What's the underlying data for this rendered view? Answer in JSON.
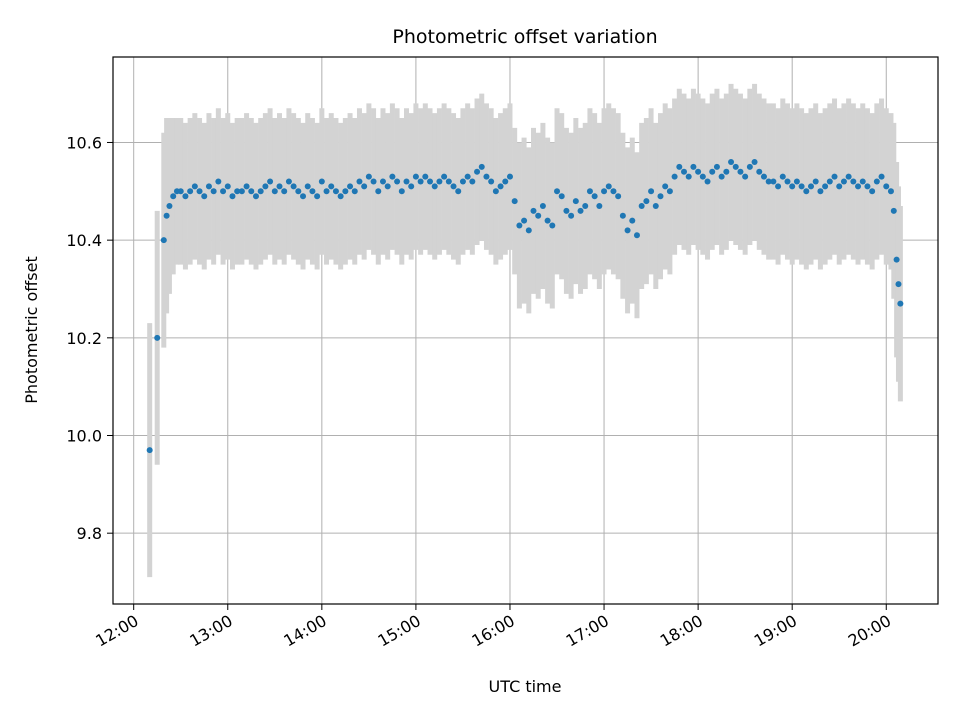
{
  "chart_data": {
    "type": "scatter",
    "title": "Photometric offset variation",
    "xlabel": "UTC time",
    "ylabel": "Photometric offset",
    "x_unit": "UTC hour",
    "xlim": [
      11.78,
      20.55
    ],
    "ylim": [
      9.655,
      10.775
    ],
    "x_ticks": [
      12,
      13,
      14,
      15,
      16,
      17,
      18,
      19,
      20
    ],
    "x_tick_labels": [
      "12:00",
      "13:00",
      "14:00",
      "15:00",
      "16:00",
      "17:00",
      "18:00",
      "19:00",
      "20:00"
    ],
    "y_ticks": [
      9.8,
      10.0,
      10.2,
      10.4,
      10.6
    ],
    "y_tick_labels": [
      "9.8",
      "10.0",
      "10.2",
      "10.4",
      "10.6"
    ],
    "grid": true,
    "point_color": "#1f77b4",
    "errorbar_color": "#d3d3d3",
    "series": [
      {
        "x": [
          12.17,
          12.25,
          12.32,
          12.35,
          12.38,
          12.42,
          12.46,
          12.5,
          12.55,
          12.6,
          12.65,
          12.7,
          12.75,
          12.8,
          12.85,
          12.9,
          12.95,
          13.0,
          13.05,
          13.1,
          13.15,
          13.2,
          13.25,
          13.3,
          13.35,
          13.4,
          13.45,
          13.5,
          13.55,
          13.6,
          13.65,
          13.7,
          13.75,
          13.8,
          13.85,
          13.9,
          13.95,
          14.0,
          14.05,
          14.1,
          14.15,
          14.2,
          14.25,
          14.3,
          14.35,
          14.4,
          14.45,
          14.5,
          14.55,
          14.6,
          14.65,
          14.7,
          14.75,
          14.8,
          14.85,
          14.9,
          14.95,
          15.0,
          15.05,
          15.1,
          15.15,
          15.2,
          15.25,
          15.3,
          15.35,
          15.4,
          15.45,
          15.5,
          15.55,
          15.6,
          15.65,
          15.7,
          15.75,
          15.8,
          15.85,
          15.9,
          15.95,
          16.0,
          16.05,
          16.1,
          16.15,
          16.2,
          16.25,
          16.3,
          16.35,
          16.4,
          16.45,
          16.5,
          16.55,
          16.6,
          16.65,
          16.7,
          16.75,
          16.8,
          16.85,
          16.9,
          16.95,
          17.0,
          17.05,
          17.1,
          17.15,
          17.2,
          17.25,
          17.3,
          17.35,
          17.4,
          17.45,
          17.5,
          17.55,
          17.6,
          17.65,
          17.7,
          17.75,
          17.8,
          17.85,
          17.9,
          17.95,
          18.0,
          18.05,
          18.1,
          18.15,
          18.2,
          18.25,
          18.3,
          18.35,
          18.4,
          18.45,
          18.5,
          18.55,
          18.6,
          18.65,
          18.7,
          18.75,
          18.8,
          18.85,
          18.9,
          18.95,
          19.0,
          19.05,
          19.1,
          19.15,
          19.2,
          19.25,
          19.3,
          19.35,
          19.4,
          19.45,
          19.5,
          19.55,
          19.6,
          19.65,
          19.7,
          19.75,
          19.8,
          19.85,
          19.9,
          19.95,
          20.0,
          20.05,
          20.08,
          20.11,
          20.13,
          20.15
        ],
        "y": [
          9.97,
          10.2,
          10.4,
          10.45,
          10.47,
          10.49,
          10.5,
          10.5,
          10.49,
          10.5,
          10.51,
          10.5,
          10.49,
          10.51,
          10.5,
          10.52,
          10.5,
          10.51,
          10.49,
          10.5,
          10.5,
          10.51,
          10.5,
          10.49,
          10.5,
          10.51,
          10.52,
          10.5,
          10.51,
          10.5,
          10.52,
          10.51,
          10.5,
          10.49,
          10.51,
          10.5,
          10.49,
          10.52,
          10.5,
          10.51,
          10.5,
          10.49,
          10.5,
          10.51,
          10.5,
          10.52,
          10.51,
          10.53,
          10.52,
          10.5,
          10.52,
          10.51,
          10.53,
          10.52,
          10.5,
          10.52,
          10.51,
          10.53,
          10.52,
          10.53,
          10.52,
          10.51,
          10.52,
          10.53,
          10.52,
          10.51,
          10.5,
          10.52,
          10.53,
          10.52,
          10.54,
          10.55,
          10.53,
          10.52,
          10.5,
          10.51,
          10.52,
          10.53,
          10.48,
          10.43,
          10.44,
          10.42,
          10.46,
          10.45,
          10.47,
          10.44,
          10.43,
          10.5,
          10.49,
          10.46,
          10.45,
          10.48,
          10.46,
          10.47,
          10.5,
          10.49,
          10.47,
          10.5,
          10.51,
          10.5,
          10.49,
          10.45,
          10.42,
          10.44,
          10.41,
          10.47,
          10.48,
          10.5,
          10.47,
          10.49,
          10.51,
          10.5,
          10.53,
          10.55,
          10.54,
          10.53,
          10.55,
          10.54,
          10.53,
          10.52,
          10.54,
          10.55,
          10.53,
          10.54,
          10.56,
          10.55,
          10.54,
          10.53,
          10.55,
          10.56,
          10.54,
          10.53,
          10.52,
          10.52,
          10.51,
          10.53,
          10.52,
          10.51,
          10.52,
          10.51,
          10.5,
          10.51,
          10.52,
          10.5,
          10.51,
          10.52,
          10.53,
          10.51,
          10.52,
          10.53,
          10.52,
          10.51,
          10.52,
          10.51,
          10.5,
          10.52,
          10.53,
          10.51,
          10.5,
          10.46,
          10.36,
          10.31,
          10.27
        ],
        "yerr": [
          0.26,
          0.26,
          0.22,
          0.2,
          0.18,
          0.16,
          0.15,
          0.15,
          0.15,
          0.15,
          0.15,
          0.15,
          0.15,
          0.15,
          0.15,
          0.15,
          0.15,
          0.15,
          0.15,
          0.15,
          0.15,
          0.15,
          0.15,
          0.15,
          0.15,
          0.15,
          0.15,
          0.15,
          0.15,
          0.15,
          0.15,
          0.15,
          0.15,
          0.15,
          0.15,
          0.15,
          0.15,
          0.15,
          0.15,
          0.15,
          0.15,
          0.15,
          0.15,
          0.15,
          0.15,
          0.15,
          0.15,
          0.15,
          0.15,
          0.15,
          0.15,
          0.15,
          0.15,
          0.15,
          0.15,
          0.15,
          0.15,
          0.15,
          0.15,
          0.15,
          0.15,
          0.15,
          0.15,
          0.15,
          0.15,
          0.15,
          0.15,
          0.15,
          0.15,
          0.15,
          0.15,
          0.15,
          0.15,
          0.15,
          0.15,
          0.15,
          0.15,
          0.15,
          0.15,
          0.17,
          0.17,
          0.17,
          0.17,
          0.17,
          0.17,
          0.17,
          0.17,
          0.17,
          0.17,
          0.17,
          0.17,
          0.17,
          0.17,
          0.17,
          0.17,
          0.17,
          0.17,
          0.17,
          0.17,
          0.17,
          0.17,
          0.17,
          0.17,
          0.17,
          0.17,
          0.17,
          0.17,
          0.17,
          0.17,
          0.17,
          0.17,
          0.17,
          0.16,
          0.16,
          0.16,
          0.16,
          0.16,
          0.16,
          0.16,
          0.16,
          0.16,
          0.16,
          0.16,
          0.16,
          0.16,
          0.16,
          0.16,
          0.16,
          0.16,
          0.16,
          0.16,
          0.16,
          0.16,
          0.16,
          0.16,
          0.16,
          0.16,
          0.16,
          0.16,
          0.16,
          0.16,
          0.16,
          0.16,
          0.16,
          0.16,
          0.16,
          0.16,
          0.16,
          0.16,
          0.16,
          0.16,
          0.16,
          0.16,
          0.16,
          0.16,
          0.16,
          0.16,
          0.16,
          0.16,
          0.18,
          0.2,
          0.2,
          0.2
        ]
      }
    ]
  }
}
